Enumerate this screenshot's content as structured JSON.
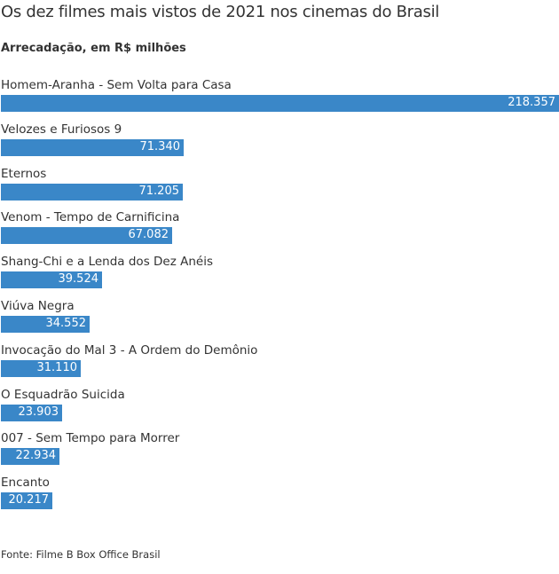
{
  "chart_data": {
    "type": "bar",
    "orientation": "horizontal",
    "title": "Os dez filmes mais vistos de 2021 nos cinemas do Brasil",
    "subtitle": "Arrecadação, em R$ milhões",
    "categories": [
      "Homem-Aranha - Sem Volta para Casa",
      "Velozes e Furiosos 9",
      "Eternos",
      "Venom - Tempo de Carnificina",
      "Shang-Chi e a Lenda dos Dez Anéis",
      "Viúva Negra",
      "Invocação do Mal 3 - A Ordem do Demônio",
      "O Esquadrão Suicida",
      "007 - Sem Tempo para Morrer",
      "Encanto"
    ],
    "values": [
      218.357,
      71.34,
      71.205,
      67.082,
      39.524,
      34.552,
      31.11,
      23.903,
      22.934,
      20.217
    ],
    "value_labels": [
      "218.357",
      "71.340",
      "71.205",
      "67.082",
      "39.524",
      "34.552",
      "31.110",
      "23.903",
      "22.934",
      "20.217"
    ],
    "xlim": [
      0,
      218.357
    ],
    "grid": false,
    "bar_color": "#3a87c8",
    "source": "Fonte: Filme B Box Office Brasil"
  }
}
